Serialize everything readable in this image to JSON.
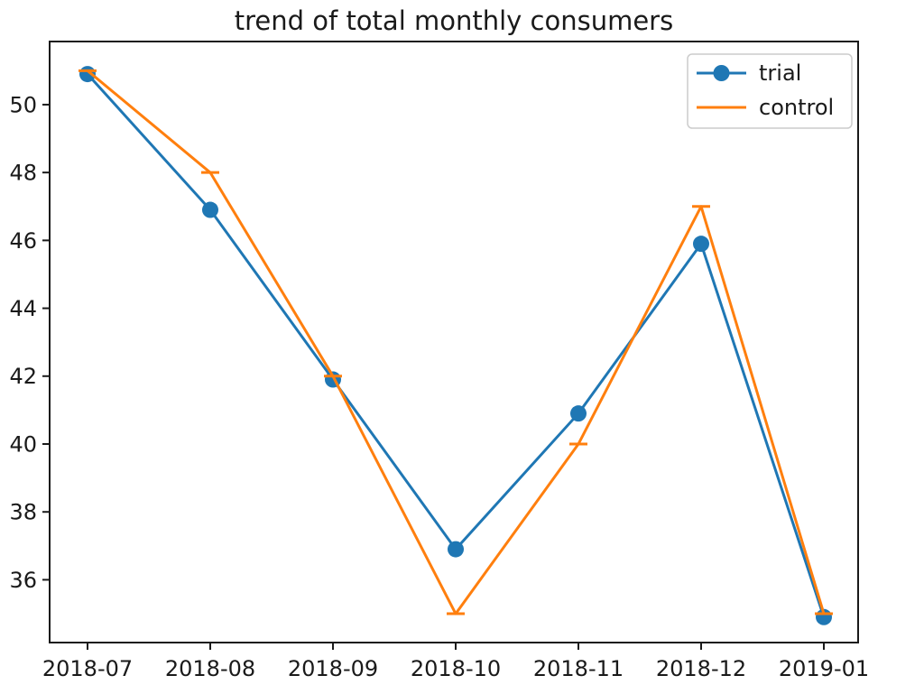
{
  "chart_data": {
    "type": "line",
    "title": "trend of total monthly consumers",
    "categories": [
      "2018-07",
      "2018-08",
      "2018-09",
      "2018-10",
      "2018-11",
      "2018-12",
      "2019-01"
    ],
    "series": [
      {
        "name": "trial",
        "color": "#1f77b4",
        "marker": "circle",
        "values": [
          50.9,
          46.9,
          41.9,
          36.9,
          40.9,
          45.9,
          34.9
        ]
      },
      {
        "name": "control",
        "color": "#ff7f0e",
        "marker": "hline",
        "values": [
          51.0,
          48.0,
          42.0,
          35.0,
          40.0,
          47.0,
          35.0
        ]
      }
    ],
    "xlabel": "",
    "ylabel": "",
    "yticks": [
      36,
      38,
      40,
      42,
      44,
      46,
      48,
      50
    ],
    "ylim": [
      34.15,
      51.86
    ],
    "grid": false,
    "legend": {
      "position": "upper right",
      "entries": [
        "trial",
        "control"
      ]
    },
    "axis_color": "#1a1a1a",
    "text_color": "#1a1a1a",
    "background": "#ffffff"
  }
}
